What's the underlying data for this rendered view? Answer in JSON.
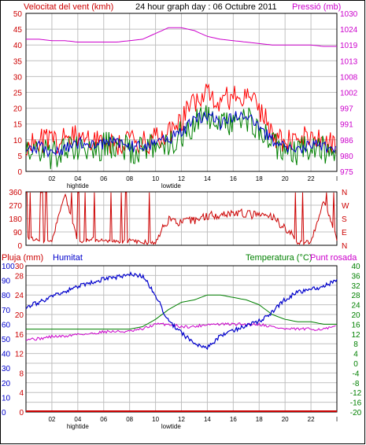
{
  "header": {
    "wind_label": "Velocitat del vent (kmh)",
    "title": "24 hour graph day : 06 Octubre 2011",
    "pressure_label": "Pressió (mb)"
  },
  "bottom_header": {
    "rain_label": "Pluja (mm)",
    "humidity_label": "Humitat",
    "temp_label": "Temperatura (°C)",
    "dew_label": "Punt rosada"
  },
  "x_axis": {
    "ticks": [
      "02",
      "04",
      "06",
      "08",
      "10",
      "12",
      "14",
      "16",
      "18",
      "20",
      "22",
      "l"
    ],
    "tide_marks": [
      {
        "label": "hightide",
        "hour": 4.0
      },
      {
        "label": "lowtide",
        "hour": 11.2
      }
    ]
  },
  "colors": {
    "wind_avg": "#008000",
    "wind_gust": "#ff0000",
    "wind_dir": "#cc0000",
    "pressure": "#cc00cc",
    "humidity": "#0000cc",
    "temperature": "#008000",
    "dewpoint": "#cc00cc",
    "rain": "#cc0000",
    "frame": "#000000",
    "grid": "#c0c0c0"
  },
  "chart_data": [
    {
      "type": "line",
      "title": "Velocitat del vent (kmh)",
      "x_unit": "hour",
      "xlim": [
        0,
        24
      ],
      "y_left": {
        "label": "Velocitat del vent (kmh)",
        "ticks": [
          "0",
          "5",
          "10",
          "15",
          "20",
          "25",
          "30",
          "35",
          "40",
          "45",
          "50"
        ],
        "lim": [
          0,
          50
        ]
      },
      "y_right": {
        "label": "Pressió (mb)",
        "ticks": [
          "975",
          "980",
          "986",
          "991",
          "997",
          "1002",
          "1008",
          "1013",
          "1019",
          "1024",
          "1030"
        ],
        "lim": [
          975,
          1030
        ]
      },
      "series": [
        {
          "name": "gust",
          "axis": "left",
          "x": [
            0,
            1,
            2,
            3,
            4,
            5,
            6,
            7,
            8,
            9,
            10,
            11,
            12,
            13,
            14,
            15,
            16,
            17,
            18,
            19,
            20,
            21,
            22,
            23,
            24
          ],
          "values": [
            9,
            10,
            9,
            10,
            12,
            10,
            9,
            9,
            9,
            9,
            10,
            12,
            16,
            22,
            26,
            22,
            24,
            24,
            20,
            12,
            9,
            10,
            11,
            10,
            9
          ]
        },
        {
          "name": "average",
          "axis": "left",
          "x": [
            0,
            1,
            2,
            3,
            4,
            5,
            6,
            7,
            8,
            9,
            10,
            11,
            12,
            13,
            14,
            15,
            16,
            17,
            18,
            19,
            20,
            21,
            22,
            23,
            24
          ],
          "values": [
            6,
            7,
            5,
            6,
            8,
            7,
            8,
            8,
            7,
            7,
            8,
            9,
            12,
            15,
            17,
            14,
            16,
            17,
            13,
            9,
            6,
            6,
            8,
            7,
            6
          ]
        },
        {
          "name": "pressure",
          "axis": "right",
          "x": [
            0,
            1,
            2,
            3,
            4,
            5,
            6,
            7,
            8,
            9,
            10,
            11,
            12,
            13,
            14,
            15,
            16,
            17,
            18,
            19,
            20,
            21,
            22,
            23,
            24
          ],
          "values": [
            1021,
            1021,
            1020.5,
            1020.5,
            1020,
            1020,
            1020,
            1020,
            1020.5,
            1021,
            1023,
            1025,
            1025,
            1024,
            1022,
            1021,
            1020.5,
            1020,
            1019.5,
            1019,
            1019,
            1019,
            1019,
            1018.5,
            1018.5
          ]
        }
      ]
    },
    {
      "type": "line",
      "title": "Wind direction",
      "x_unit": "hour",
      "xlim": [
        0,
        24
      ],
      "y_left": {
        "ticks": [
          "0",
          "90",
          "180",
          "270",
          "360"
        ],
        "lim": [
          0,
          360
        ]
      },
      "y_right": {
        "ticks": [
          "N",
          "W",
          "S",
          "E",
          "N"
        ]
      },
      "series": [
        {
          "name": "direction",
          "axis": "left",
          "x": [
            0,
            1,
            2,
            3,
            4,
            5,
            6,
            7,
            8,
            9,
            10,
            11,
            12,
            13,
            14,
            15,
            16,
            17,
            18,
            19,
            20,
            21,
            22,
            23,
            24
          ],
          "values": [
            60,
            30,
            30,
            350,
            20,
            40,
            30,
            20,
            30,
            20,
            20,
            180,
            150,
            170,
            200,
            210,
            220,
            210,
            200,
            190,
            120,
            20,
            20,
            300,
            40
          ]
        }
      ]
    },
    {
      "type": "line",
      "title": "Pluja / Humitat / Temperatura / Punt rosada",
      "x_unit": "hour",
      "xlim": [
        0,
        24
      ],
      "y_left_rain": {
        "label": "Pluja (mm)",
        "ticks": [
          "0",
          "4",
          "8",
          "12",
          "16",
          "20",
          "24",
          "28",
          "30"
        ],
        "lim": [
          0,
          30
        ]
      },
      "y_left_humidity": {
        "label": "Humitat",
        "ticks": [
          "0",
          "10",
          "20",
          "30",
          "40",
          "50",
          "60",
          "70",
          "80",
          "90",
          "100"
        ],
        "lim": [
          0,
          100
        ]
      },
      "y_right": {
        "label": "Temperatura (°C)",
        "ticks": [
          "-20",
          "-16",
          "-12",
          "-8",
          "-4",
          "0",
          "4",
          "8",
          "12",
          "16",
          "20",
          "24",
          "28",
          "32",
          "36",
          "40"
        ],
        "lim": [
          -20,
          40
        ]
      },
      "series": [
        {
          "name": "humidity",
          "axis": "humidity",
          "x": [
            0,
            1,
            2,
            3,
            4,
            5,
            6,
            7,
            8,
            9,
            10,
            11,
            12,
            13,
            14,
            15,
            16,
            17,
            18,
            19,
            20,
            21,
            22,
            23,
            24
          ],
          "values": [
            72,
            75,
            79,
            82,
            86,
            88,
            91,
            92,
            94,
            93,
            80,
            62,
            54,
            47,
            44,
            52,
            56,
            59,
            62,
            68,
            77,
            82,
            84,
            86,
            90
          ]
        },
        {
          "name": "temperature",
          "axis": "temp",
          "x": [
            0,
            1,
            2,
            3,
            4,
            5,
            6,
            7,
            8,
            9,
            10,
            11,
            12,
            13,
            14,
            15,
            16,
            17,
            18,
            19,
            20,
            21,
            22,
            23,
            24
          ],
          "values": [
            14,
            14,
            14,
            14,
            14,
            14,
            14,
            14,
            14,
            15,
            18,
            22,
            25,
            26,
            28,
            28,
            27,
            26,
            24,
            20,
            18,
            17,
            17,
            16,
            16
          ]
        },
        {
          "name": "dewpoint",
          "axis": "temp",
          "x": [
            0,
            1,
            2,
            3,
            4,
            5,
            6,
            7,
            8,
            9,
            10,
            11,
            12,
            13,
            14,
            15,
            16,
            17,
            18,
            19,
            20,
            21,
            22,
            23,
            24
          ],
          "values": [
            10,
            10,
            11,
            11,
            12,
            12,
            13,
            13,
            13,
            14,
            16,
            16,
            15,
            15,
            16,
            16,
            16,
            16,
            16,
            15,
            14,
            14,
            14,
            14,
            15
          ]
        },
        {
          "name": "rain",
          "axis": "rain",
          "x": [
            0,
            24
          ],
          "values": [
            0,
            0
          ]
        }
      ]
    }
  ]
}
